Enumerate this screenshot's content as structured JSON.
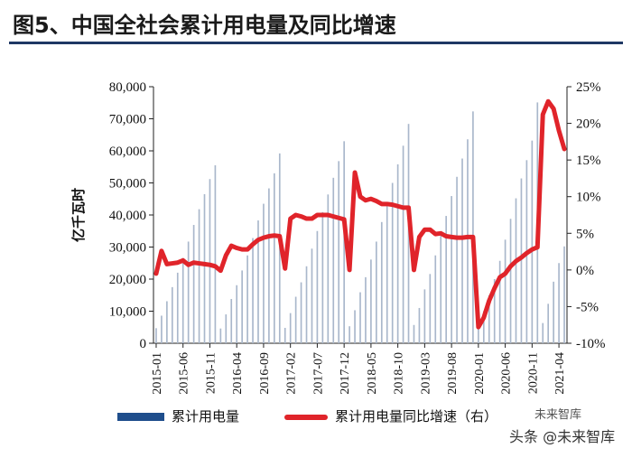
{
  "title": "图5、中国全社会累计用电量及同比增速",
  "watermark": "头条 @未来智库",
  "watermark_top": "未来智库",
  "chart_data": {
    "type": "bar+line",
    "ylabel": "亿千瓦时",
    "y_left": {
      "min": 0,
      "max": 80000,
      "ticks": [
        "0",
        "10,000",
        "20,000",
        "30,000",
        "40,000",
        "50,000",
        "60,000",
        "70,000",
        "80,000"
      ]
    },
    "y_right": {
      "min": -10,
      "max": 25,
      "ticks": [
        "-10%",
        "-5%",
        "0%",
        "5%",
        "10%",
        "15%",
        "20%",
        "25%"
      ]
    },
    "x_tick_labels": [
      "2015-01",
      "2015-06",
      "2015-11",
      "2016-04",
      "2016-09",
      "2017-02",
      "2017-07",
      "2017-12",
      "2018-05",
      "2018-10",
      "2019-03",
      "2019-08",
      "2020-01",
      "2020-06",
      "2020-11",
      "2021-04"
    ],
    "start": "2015-01",
    "months": [
      "2015-01",
      "2015-02",
      "2015-03",
      "2015-04",
      "2015-05",
      "2015-06",
      "2015-07",
      "2015-08",
      "2015-09",
      "2015-10",
      "2015-11",
      "2015-12",
      "2016-01",
      "2016-02",
      "2016-03",
      "2016-04",
      "2016-05",
      "2016-06",
      "2016-07",
      "2016-08",
      "2016-09",
      "2016-10",
      "2016-11",
      "2016-12",
      "2017-01",
      "2017-02",
      "2017-03",
      "2017-04",
      "2017-05",
      "2017-06",
      "2017-07",
      "2017-08",
      "2017-09",
      "2017-10",
      "2017-11",
      "2017-12",
      "2018-01",
      "2018-02",
      "2018-03",
      "2018-04",
      "2018-05",
      "2018-06",
      "2018-07",
      "2018-08",
      "2018-09",
      "2018-10",
      "2018-11",
      "2018-12",
      "2019-01",
      "2019-02",
      "2019-03",
      "2019-04",
      "2019-05",
      "2019-06",
      "2019-07",
      "2019-08",
      "2019-09",
      "2019-10",
      "2019-11",
      "2019-12",
      "2020-01",
      "2020-02",
      "2020-03",
      "2020-04",
      "2020-05",
      "2020-06",
      "2020-07",
      "2020-08",
      "2020-09",
      "2020-10",
      "2020-11",
      "2020-12",
      "2021-01",
      "2021-02",
      "2021-03",
      "2021-04",
      "2021-05"
    ],
    "series": [
      {
        "name": "累计用电量",
        "type": "bar",
        "color": "#a9b7cb",
        "legend_color": "#1f4e8c",
        "values": [
          4700,
          8600,
          13100,
          17500,
          22000,
          26600,
          31700,
          36900,
          41800,
          46500,
          51200,
          55500,
          4600,
          9000,
          13800,
          18100,
          22700,
          27400,
          32800,
          38300,
          43500,
          48300,
          53000,
          59200,
          4800,
          9400,
          14500,
          19000,
          24000,
          29500,
          35000,
          40900,
          46400,
          51600,
          56800,
          63000,
          5300,
          10300,
          15900,
          20600,
          26100,
          31700,
          37800,
          44000,
          50000,
          55800,
          61600,
          68400,
          5700,
          11000,
          16800,
          21600,
          27400,
          33500,
          39700,
          45900,
          51900,
          57600,
          63600,
          72300,
          5300,
          10000,
          15000,
          20000,
          25700,
          32300,
          38800,
          45200,
          51400,
          57100,
          63200,
          75100,
          6300,
          12300,
          19200,
          25000,
          30200
        ]
      },
      {
        "name": "累计用电量同比增速（右）",
        "type": "line",
        "color": "#e0242a",
        "values": [
          -0.5,
          2.6,
          0.8,
          0.9,
          1.0,
          1.3,
          0.7,
          1.0,
          0.9,
          0.8,
          0.7,
          0.5,
          -0.1,
          2.0,
          3.3,
          3.0,
          2.8,
          2.8,
          3.5,
          4.1,
          4.4,
          4.6,
          4.7,
          4.6,
          0.2,
          7.0,
          7.5,
          7.3,
          7.0,
          7.0,
          7.5,
          7.5,
          7.5,
          7.3,
          7.1,
          6.9,
          0.0,
          13.3,
          10.0,
          9.5,
          9.7,
          9.4,
          9.0,
          9.0,
          8.9,
          8.7,
          8.5,
          8.5,
          0.0,
          4.5,
          5.5,
          5.5,
          4.9,
          5.0,
          4.6,
          4.5,
          4.4,
          4.4,
          4.5,
          4.5,
          -7.8,
          -6.5,
          -4.2,
          -2.5,
          -1.0,
          -0.5,
          0.5,
          1.2,
          1.7,
          2.3,
          2.8,
          3.1,
          21.2,
          23.0,
          22.0,
          19.0,
          16.5
        ]
      }
    ],
    "legend_placement": "bottom",
    "grid": false
  }
}
